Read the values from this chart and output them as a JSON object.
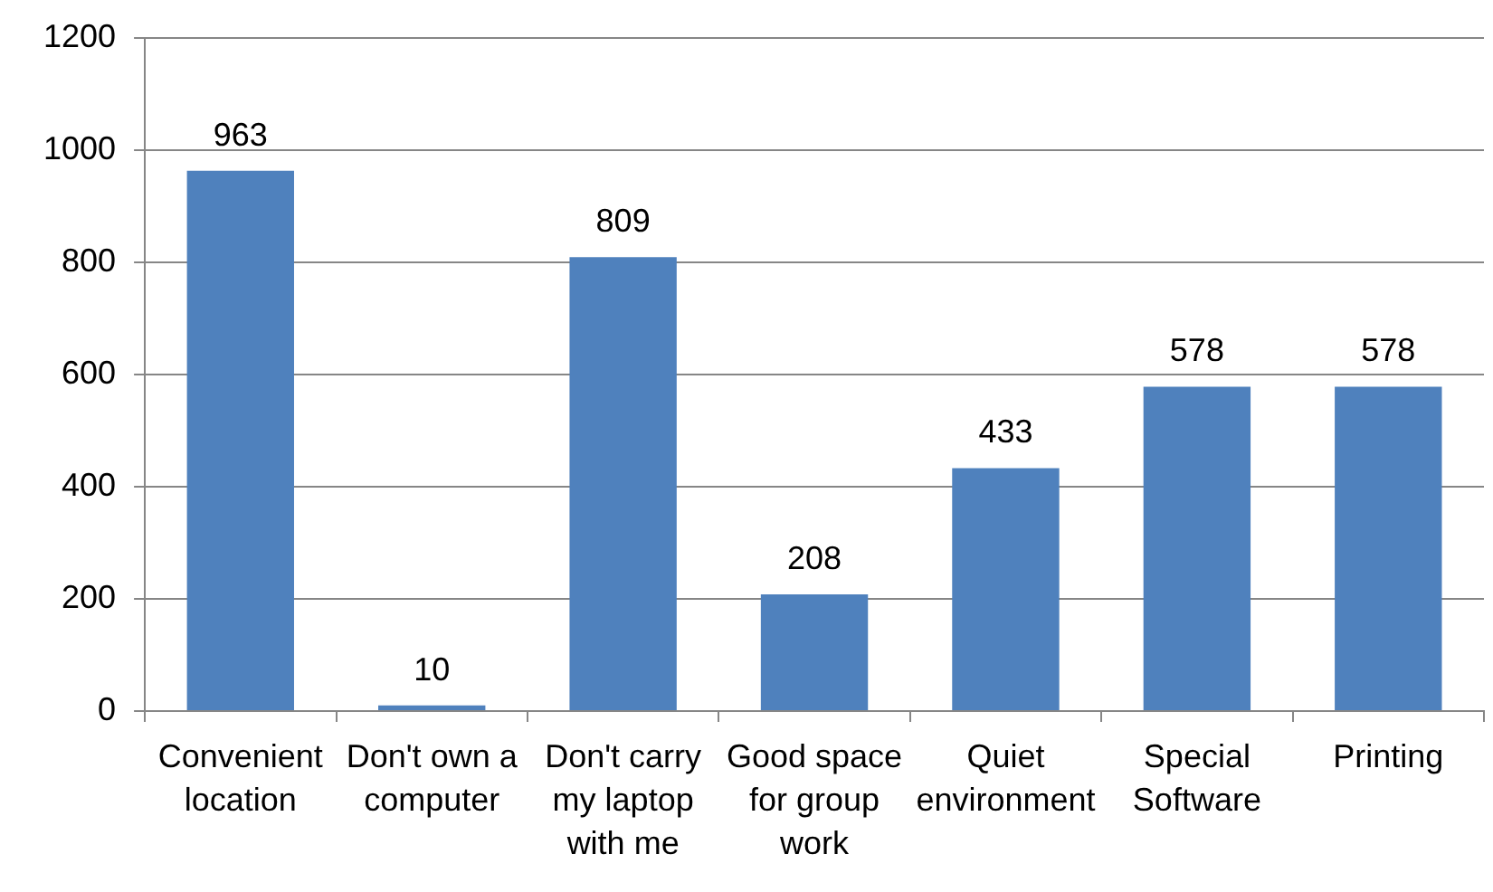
{
  "chart_data": {
    "type": "bar",
    "categories": [
      "Convenient location",
      "Don't own a computer",
      "Don't carry my laptop with me",
      "Good space for group work",
      "Quiet environment",
      "Special Software",
      "Printing"
    ],
    "values": [
      963,
      10,
      809,
      208,
      433,
      578,
      578
    ],
    "color": "#4f81bd",
    "ylim": [
      0,
      1200
    ],
    "yticks": [
      0,
      200,
      400,
      600,
      800,
      1000,
      1200
    ],
    "grid": "y",
    "data_labels": true
  }
}
